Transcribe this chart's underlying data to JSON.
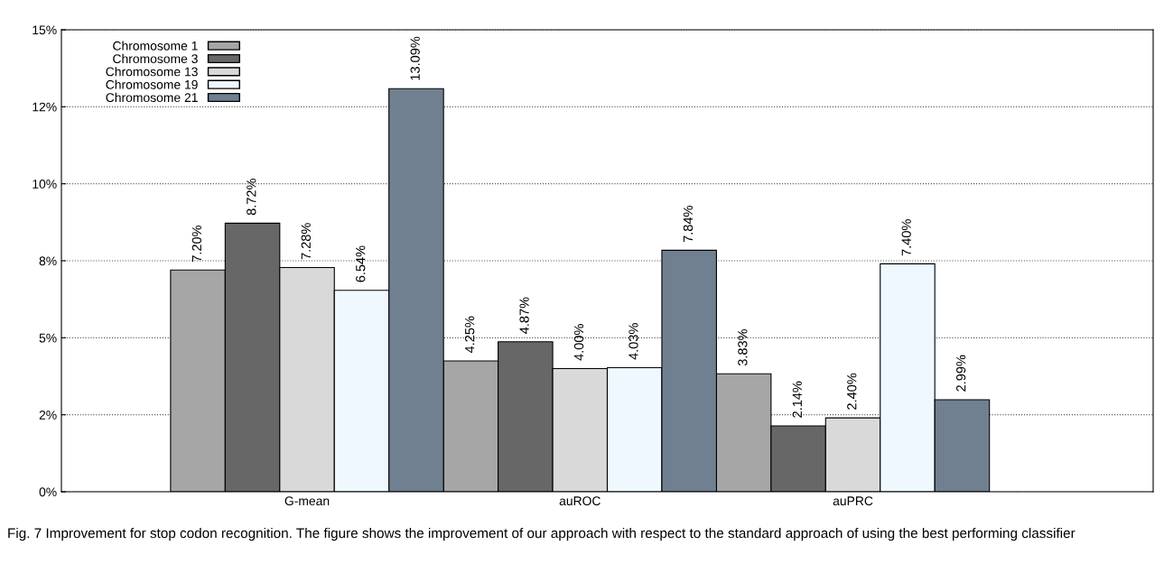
{
  "chart_data": {
    "type": "bar",
    "categories": [
      "G-mean",
      "auROC",
      "auPRC"
    ],
    "series": [
      {
        "name": "Chromosome 1",
        "color": "#a6a6a6",
        "values": [
          7.2,
          4.25,
          3.83
        ],
        "value_labels": [
          "7.20%",
          "4.25%",
          "3.83%"
        ]
      },
      {
        "name": "Chromosome 3",
        "color": "#676767",
        "values": [
          8.72,
          4.87,
          2.14
        ],
        "value_labels": [
          "8.72%",
          "4.87%",
          "2.14%"
        ]
      },
      {
        "name": "Chromosome 13",
        "color": "#d9d9d9",
        "values": [
          7.28,
          4.0,
          2.4
        ],
        "value_labels": [
          "7.28%",
          "4.00%",
          "2.40%"
        ]
      },
      {
        "name": "Chromosome 19",
        "color": "#f0f8ff",
        "values": [
          6.54,
          4.03,
          7.4
        ],
        "value_labels": [
          "6.54%",
          "4.03%",
          "7.40%"
        ]
      },
      {
        "name": "Chromosome 21",
        "color": "#708090",
        "values": [
          13.09,
          7.84,
          2.99
        ],
        "value_labels": [
          "13.09%",
          "7.84%",
          "2.99%"
        ]
      }
    ],
    "ylim": [
      0,
      15
    ],
    "yticks": [
      {
        "value": 0,
        "label": "0%"
      },
      {
        "value": 2.5,
        "label": "2%"
      },
      {
        "value": 5,
        "label": "5%"
      },
      {
        "value": 7.5,
        "label": "8%"
      },
      {
        "value": 10,
        "label": "10%"
      },
      {
        "value": 12.5,
        "label": "12%"
      },
      {
        "value": 15,
        "label": "15%"
      }
    ],
    "grid": "y",
    "legend": "top left",
    "annotations": [
      "Fig. 7 Improvement for stop codon recognition. The figure shows the improvement of our approach with respect to the standard approach of using the best performing classifier"
    ]
  }
}
